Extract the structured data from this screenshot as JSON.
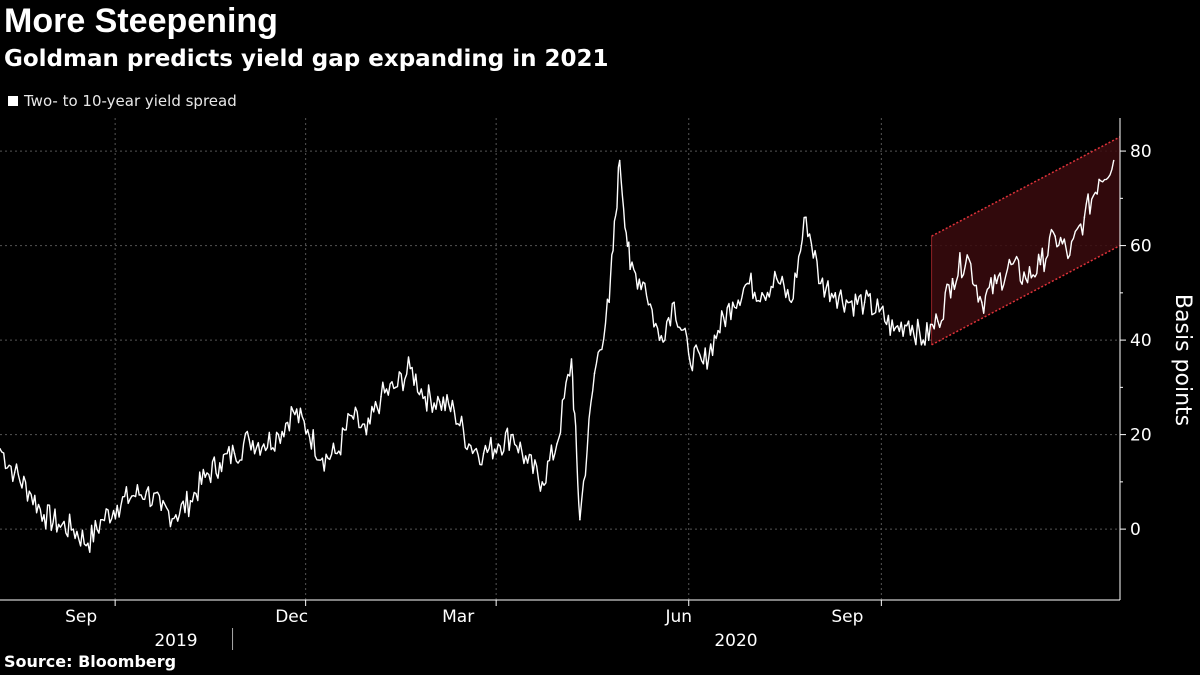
{
  "header": {
    "title": "More Steepening",
    "subtitle": "Goldman predicts yield gap expanding in 2021"
  },
  "legend": {
    "label": "Two- to 10-year yield spread"
  },
  "footer": {
    "source": "Source: Bloomberg"
  },
  "colors": {
    "background": "#000000",
    "series": "#ffffff",
    "channel_line": "#e0333a",
    "channel_fill": "#3a0a0e",
    "grid": "#555555"
  },
  "chart_data": {
    "type": "line",
    "title": "More Steepening",
    "subtitle": "Goldman predicts yield gap expanding in 2021",
    "ylabel": "Basis points",
    "xlabel": "",
    "ylim": [
      -15,
      87
    ],
    "yticks": [
      0,
      20,
      40,
      60,
      80
    ],
    "xlim": [
      "2019-07-08",
      "2020-12-24"
    ],
    "xticks": [
      {
        "date": "2019-09-01",
        "label": "Sep"
      },
      {
        "date": "2019-12-01",
        "label": "Dec"
      },
      {
        "date": "2020-03-01",
        "label": "Mar"
      },
      {
        "date": "2020-06-01",
        "label": "Jun"
      },
      {
        "date": "2020-09-01",
        "label": "Sep"
      }
    ],
    "year_labels": [
      {
        "label": "2019",
        "center": "2019-10-20"
      },
      {
        "label": "2020",
        "center": "2020-06-20"
      }
    ],
    "year_divider": "2020-01-01",
    "grid": true,
    "legend_position": "top-left",
    "series": [
      {
        "name": "Two- to 10-year yield spread",
        "points": [
          [
            "2019-07-08",
            17
          ],
          [
            "2019-07-15",
            12
          ],
          [
            "2019-07-22",
            8
          ],
          [
            "2019-07-29",
            3
          ],
          [
            "2019-08-05",
            1
          ],
          [
            "2019-08-12",
            0
          ],
          [
            "2019-08-19",
            -3
          ],
          [
            "2019-08-26",
            2
          ],
          [
            "2019-09-02",
            5
          ],
          [
            "2019-09-09",
            7
          ],
          [
            "2019-09-16",
            8
          ],
          [
            "2019-09-23",
            4
          ],
          [
            "2019-09-30",
            3
          ],
          [
            "2019-10-07",
            6
          ],
          [
            "2019-10-14",
            11
          ],
          [
            "2019-10-21",
            14
          ],
          [
            "2019-10-28",
            16
          ],
          [
            "2019-11-04",
            19
          ],
          [
            "2019-11-11",
            18
          ],
          [
            "2019-11-18",
            20
          ],
          [
            "2019-11-25",
            25
          ],
          [
            "2019-12-02",
            21
          ],
          [
            "2019-12-09",
            15
          ],
          [
            "2019-12-16",
            16
          ],
          [
            "2019-12-23",
            24
          ],
          [
            "2019-12-30",
            20
          ],
          [
            "2020-01-06",
            28
          ],
          [
            "2020-01-13",
            30
          ],
          [
            "2020-01-20",
            34
          ],
          [
            "2020-01-27",
            28
          ],
          [
            "2020-02-03",
            27
          ],
          [
            "2020-02-10",
            25
          ],
          [
            "2020-02-17",
            18
          ],
          [
            "2020-02-24",
            16
          ],
          [
            "2020-03-02",
            18
          ],
          [
            "2020-03-09",
            20
          ],
          [
            "2020-03-16",
            14
          ],
          [
            "2020-03-23",
            10
          ],
          [
            "2020-03-30",
            18
          ],
          [
            "2020-04-06",
            36
          ],
          [
            "2020-04-10",
            2
          ],
          [
            "2020-04-17",
            33
          ],
          [
            "2020-04-24",
            48
          ],
          [
            "2020-04-29",
            78
          ],
          [
            "2020-05-04",
            55
          ],
          [
            "2020-05-11",
            52
          ],
          [
            "2020-05-18",
            40
          ],
          [
            "2020-05-25",
            48
          ],
          [
            "2020-06-01",
            37
          ],
          [
            "2020-06-08",
            35
          ],
          [
            "2020-06-15",
            42
          ],
          [
            "2020-06-22",
            48
          ],
          [
            "2020-06-29",
            52
          ],
          [
            "2020-07-06",
            50
          ],
          [
            "2020-07-13",
            53
          ],
          [
            "2020-07-20",
            48
          ],
          [
            "2020-07-27",
            66
          ],
          [
            "2020-08-03",
            52
          ],
          [
            "2020-08-10",
            50
          ],
          [
            "2020-08-17",
            48
          ],
          [
            "2020-08-24",
            48
          ],
          [
            "2020-08-31",
            46
          ],
          [
            "2020-09-07",
            42
          ],
          [
            "2020-09-14",
            44
          ],
          [
            "2020-09-21",
            40
          ],
          [
            "2020-09-28",
            44
          ],
          [
            "2020-10-05",
            53
          ],
          [
            "2020-10-12",
            58
          ],
          [
            "2020-10-19",
            48
          ],
          [
            "2020-10-26",
            52
          ],
          [
            "2020-11-02",
            56
          ],
          [
            "2020-11-09",
            53
          ],
          [
            "2020-11-16",
            56
          ],
          [
            "2020-11-23",
            62
          ],
          [
            "2020-11-30",
            58
          ],
          [
            "2020-12-07",
            66
          ],
          [
            "2020-12-14",
            74
          ],
          [
            "2020-12-21",
            78
          ]
        ]
      }
    ],
    "annotations": [
      {
        "type": "channel",
        "start": "2020-09-25",
        "end": "2020-12-24",
        "upper": [
          62,
          83
        ],
        "lower": [
          39,
          60
        ]
      }
    ]
  }
}
